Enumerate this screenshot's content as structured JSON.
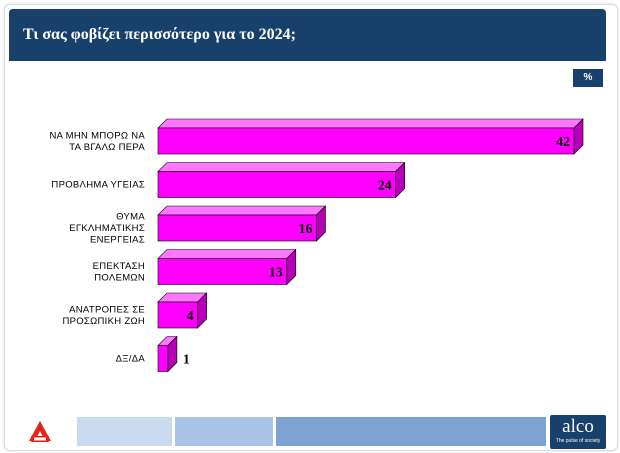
{
  "header": {
    "title": "Τι σας φοβίζει περισσότερο για το 2024;"
  },
  "unit_badge": "%",
  "colors": {
    "bar_front": "#ff00ff",
    "bar_top": "#ff77ff",
    "bar_side": "#b800b8",
    "header": "#17416a"
  },
  "chart_data": {
    "type": "bar",
    "orientation": "horizontal",
    "style": "3d",
    "categories": [
      [
        "ΝΑ ΜΗΝ ΜΠΟΡΩ ΝΑ",
        "ΤΑ ΒΓΑΛΩ ΠΕΡΑ"
      ],
      [
        "ΠΡΟΒΛΗΜΑ ΥΓΕΙΑΣ"
      ],
      [
        "ΘΥΜΑ",
        "ΕΓΚΛΗΜΑΤΙΚΗΣ",
        "ΕΝΕΡΓΕΙΑΣ"
      ],
      [
        "ΕΠΕΚΤΑΣΗ",
        "ΠΟΛΕΜΩΝ"
      ],
      [
        "ΑΝΑΤΡΟΠΕΣ ΣΕ",
        "ΠΡΟΣΩΠΙΚΗ ΖΩΗ"
      ],
      [
        "ΔΞ/ΔΑ"
      ]
    ],
    "values": [
      42,
      24,
      16,
      13,
      4,
      1
    ],
    "value_labels": [
      "42",
      "24",
      "16",
      "13",
      "4",
      "1"
    ],
    "xlim": [
      0,
      42
    ],
    "grid": false,
    "legend": "none"
  },
  "footer": {
    "brand": "alco",
    "brand_tagline": "The pulse of society",
    "left_logo": "alpha-tv-logo-icon"
  }
}
